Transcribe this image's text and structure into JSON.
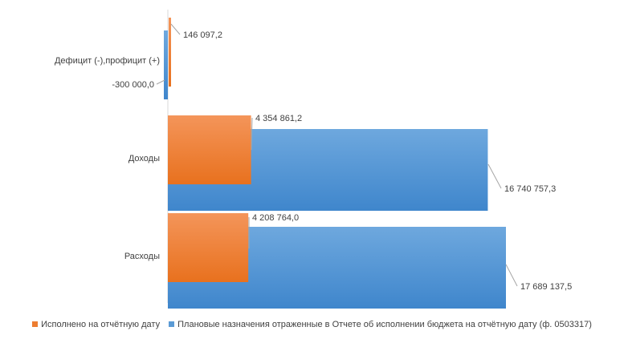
{
  "chart_data": {
    "type": "bar",
    "orientation": "horizontal",
    "categories": [
      "Дефицит (-),профицит (+)",
      "Доходы",
      "Расходы"
    ],
    "series": [
      {
        "name": "Исполнено на отчётную дату",
        "color": "#ED7D31",
        "values": [
          146097.2,
          4354861.2,
          4208764.0
        ],
        "labels": [
          "146 097,2",
          "4 354 861,2",
          "4 208 764,0"
        ]
      },
      {
        "name": "Плановые назначения отраженные в Отчете об исполнении бюджета на отчётную дату (ф. 0503317)",
        "color": "#5B9BD5",
        "values": [
          -300000.0,
          16740757.3,
          17689137.5
        ],
        "labels": [
          "-300 000,0",
          "16 740 757,3",
          "17 689 137,5"
        ]
      }
    ],
    "legend_position": "bottom",
    "grid": false
  }
}
